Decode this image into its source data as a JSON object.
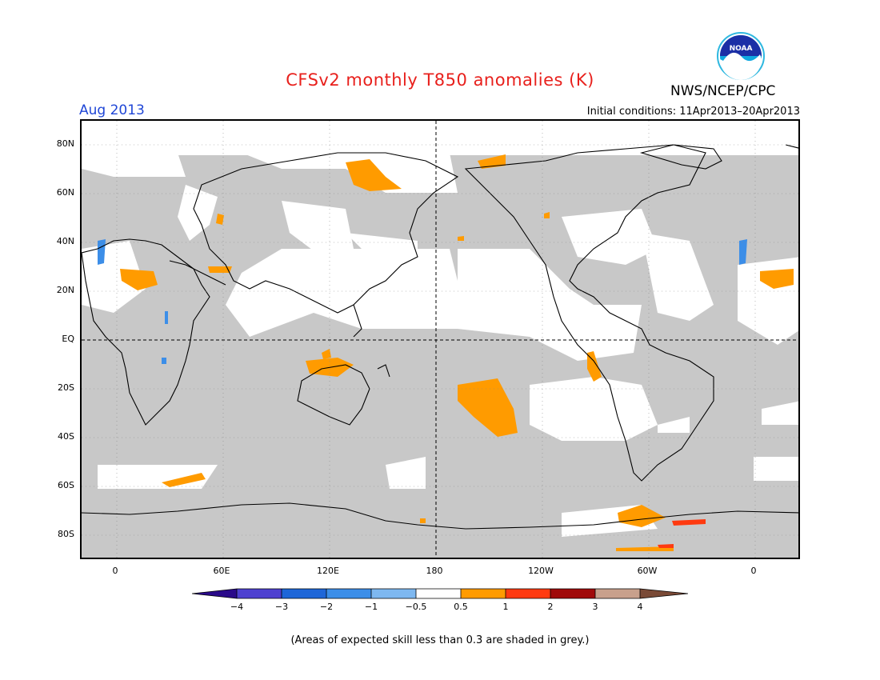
{
  "header": {
    "title": "CFSv2 monthly T850 anomalies (K)",
    "agency": "NWS/NCEP/CPC",
    "logo_text": "NOAA",
    "valid_month": "Aug 2013",
    "initial_conditions": "Initial conditions: 11Apr2013–20Apr2013"
  },
  "map": {
    "lat_labels": [
      "80N",
      "60N",
      "40N",
      "20N",
      "EQ",
      "20S",
      "40S",
      "60S",
      "80S"
    ],
    "lon_labels": [
      "0",
      "60E",
      "120E",
      "180",
      "120W",
      "60W",
      "0"
    ],
    "colors": {
      "skill_grey": "#c8c8c8",
      "coast": "#000000"
    }
  },
  "colorbar": {
    "labels": [
      "−4",
      "−3",
      "−2",
      "−1",
      "−0.5",
      "0.5",
      "1",
      "2",
      "3",
      "4"
    ],
    "colors": [
      "#2a0a8a",
      "#4e40d0",
      "#1e66d8",
      "#3c8ee8",
      "#7eb8f0",
      "#ffffff",
      "#ff9b00",
      "#ff3a10",
      "#a00a0a",
      "#c8a08c",
      "#7a4a36"
    ]
  },
  "footnote": "(Areas of expected skill less than 0.3 are shaded in grey.)"
}
